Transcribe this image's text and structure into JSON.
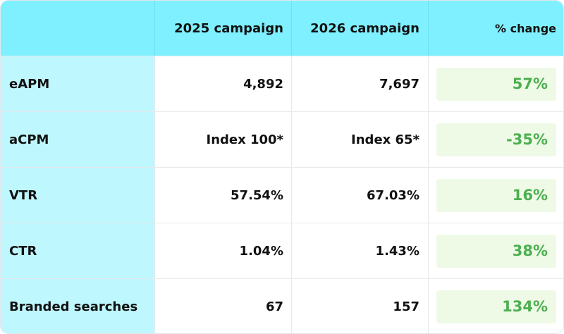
{
  "header": {
    "col0": "",
    "col1": "2025 campaign",
    "col2": "2026 campaign",
    "col3": "% change"
  },
  "rows": [
    {
      "metric": "eAPM",
      "y2025": "4,892",
      "y2026": "7,697",
      "change": "57%"
    },
    {
      "metric": "aCPM",
      "y2025": "Index 100*",
      "y2026": "Index 65*",
      "change": "-35%"
    },
    {
      "metric": "VTR",
      "y2025": "57.54%",
      "y2026": "67.03%",
      "change": "16%"
    },
    {
      "metric": "CTR",
      "y2025": "1.04%",
      "y2026": "1.43%",
      "change": "38%"
    },
    {
      "metric": "Branded searches",
      "y2025": "67",
      "y2026": "157",
      "change": "134%"
    }
  ],
  "colors": {
    "header_bg": "#7ff0ff",
    "metric_col_bg": "#bff7ff",
    "change_badge_bg": "#eefae6",
    "change_text": "#4caf50"
  }
}
